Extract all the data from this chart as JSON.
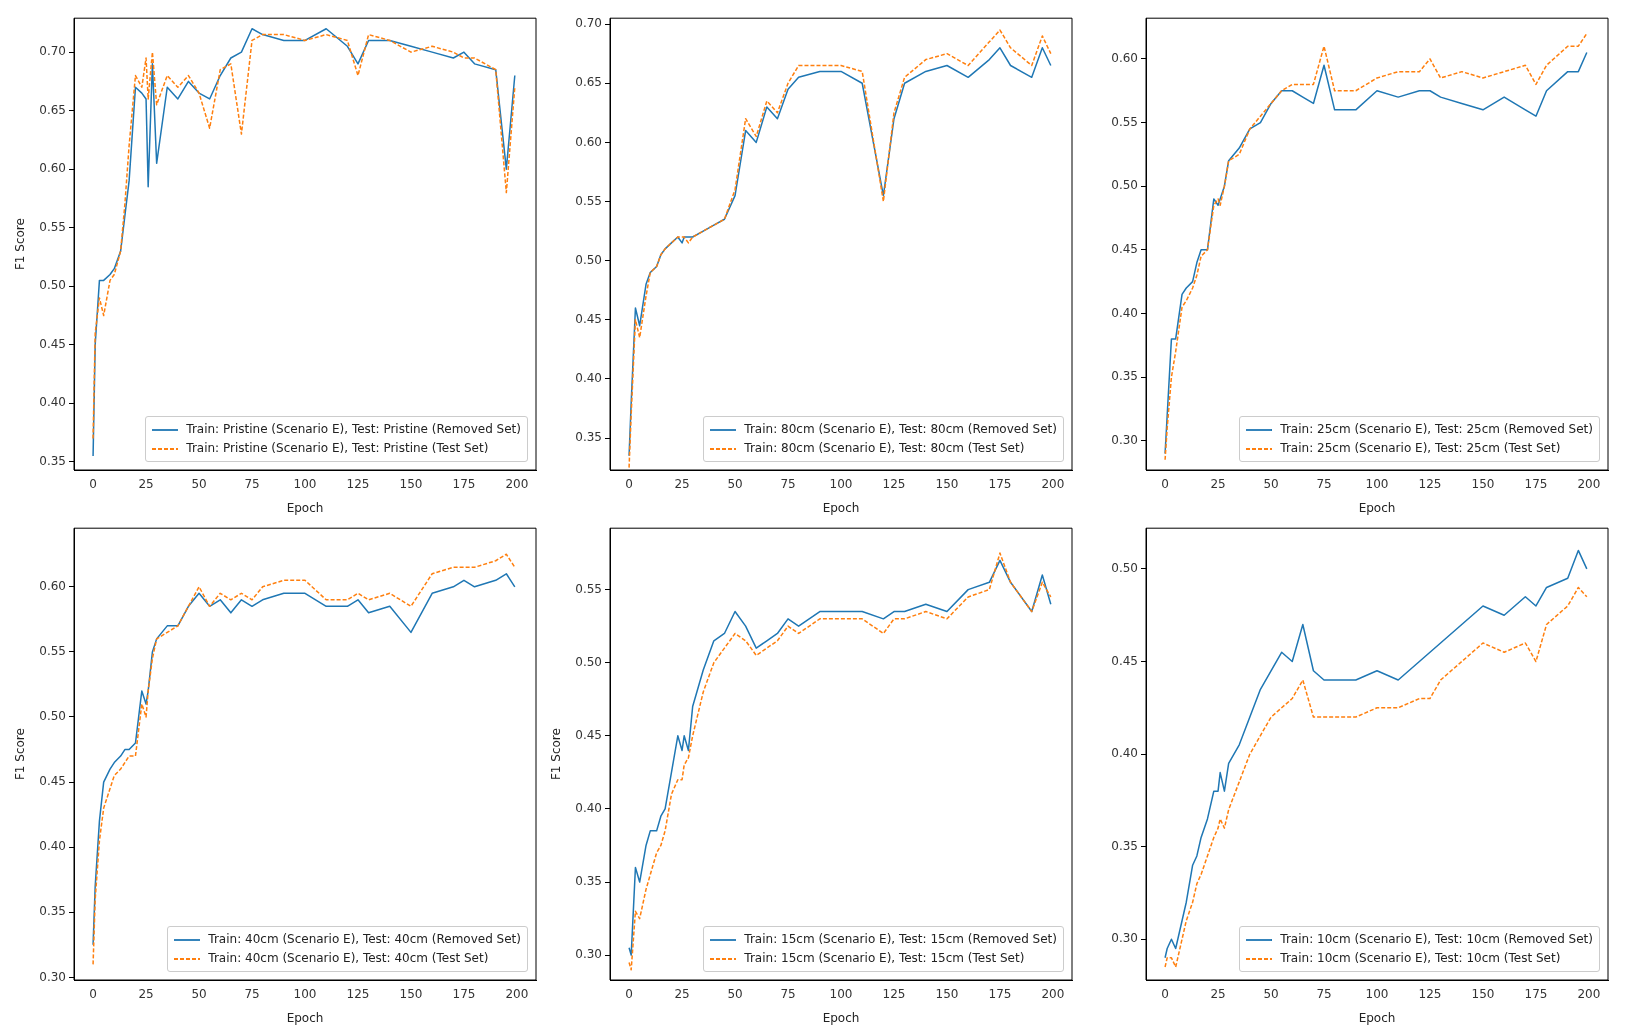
{
  "chart_data": [
    {
      "type": "line",
      "xlabel": "Epoch",
      "ylabel": "F1 Score",
      "legend": "bottom right",
      "grid": false,
      "xlim": [
        -9,
        209
      ],
      "xticks": [
        0,
        25,
        50,
        75,
        100,
        125,
        150,
        175,
        200
      ],
      "ylim": [
        0.343,
        0.729
      ],
      "yticks": [
        0.35,
        {
          "value": 0.4,
          "label": "0.40"
        },
        0.45,
        {
          "value": 0.5,
          "label": "0.50"
        },
        0.55,
        {
          "value": 0.6,
          "label": "0.60"
        },
        0.65,
        {
          "value": 0.7,
          "label": "0.70"
        }
      ],
      "x": [
        0,
        1,
        3,
        5,
        8,
        10,
        13,
        15,
        17,
        20,
        23,
        25,
        26,
        28,
        30,
        35,
        40,
        45,
        50,
        55,
        60,
        65,
        70,
        75,
        80,
        90,
        100,
        110,
        120,
        125,
        130,
        140,
        150,
        160,
        170,
        175,
        180,
        190,
        195,
        199
      ],
      "series": [
        {
          "name": "Train: Pristine (Scenario E), Test: Pristine (Removed Set)",
          "color": "#1f77b4",
          "line_style": "solid",
          "values": [
            0.355,
            0.45,
            0.505,
            0.505,
            0.51,
            0.515,
            0.53,
            0.56,
            0.59,
            0.67,
            0.665,
            0.66,
            0.585,
            0.69,
            0.605,
            0.67,
            0.66,
            0.675,
            0.665,
            0.66,
            0.68,
            0.695,
            0.7,
            0.72,
            0.715,
            0.71,
            0.71,
            0.72,
            0.705,
            0.69,
            0.71,
            0.71,
            0.705,
            0.7,
            0.695,
            0.7,
            0.69,
            0.685,
            0.6,
            0.68
          ]
        },
        {
          "name": "Train: Pristine (Scenario E), Test: Pristine (Test Set)",
          "color": "#ff7f0e",
          "line_style": "dashed",
          "values": [
            0.37,
            0.46,
            0.49,
            0.475,
            0.505,
            0.51,
            0.53,
            0.57,
            0.62,
            0.68,
            0.67,
            0.695,
            0.66,
            0.7,
            0.655,
            0.68,
            0.67,
            0.68,
            0.665,
            0.635,
            0.685,
            0.69,
            0.63,
            0.71,
            0.715,
            0.715,
            0.71,
            0.715,
            0.71,
            0.68,
            0.715,
            0.71,
            0.7,
            0.705,
            0.7,
            0.695,
            0.695,
            0.685,
            0.58,
            0.67
          ]
        }
      ]
    },
    {
      "type": "line",
      "xlabel": "Epoch",
      "legend": "bottom right",
      "grid": false,
      "xlim": [
        -9,
        209
      ],
      "xticks": [
        0,
        25,
        50,
        75,
        100,
        125,
        150,
        175,
        200
      ],
      "ylim": [
        0.323,
        0.705
      ],
      "yticks": [
        0.35,
        {
          "value": 0.4,
          "label": "0.40"
        },
        0.45,
        {
          "value": 0.5,
          "label": "0.50"
        },
        0.55,
        {
          "value": 0.6,
          "label": "0.60"
        },
        0.65,
        {
          "value": 0.7,
          "label": "0.70"
        }
      ],
      "x": [
        0,
        1,
        3,
        5,
        8,
        10,
        13,
        15,
        17,
        20,
        23,
        25,
        26,
        28,
        30,
        35,
        40,
        45,
        50,
        55,
        60,
        65,
        70,
        75,
        80,
        90,
        100,
        110,
        120,
        125,
        130,
        140,
        150,
        160,
        170,
        175,
        180,
        190,
        195,
        199
      ],
      "series": [
        {
          "name": "Train: 80cm (Scenario E), Test: 80cm (Removed Set)",
          "color": "#1f77b4",
          "line_style": "solid",
          "values": [
            0.335,
            0.38,
            0.46,
            0.445,
            0.48,
            0.49,
            0.495,
            0.505,
            0.51,
            0.515,
            0.52,
            0.515,
            0.52,
            0.52,
            0.52,
            0.525,
            0.53,
            0.535,
            0.555,
            0.61,
            0.6,
            0.63,
            0.62,
            0.645,
            0.655,
            0.66,
            0.66,
            0.65,
            0.555,
            0.62,
            0.65,
            0.66,
            0.665,
            0.655,
            0.67,
            0.68,
            0.665,
            0.655,
            0.68,
            0.665
          ]
        },
        {
          "name": "Train: 80cm (Scenario E), Test: 80cm (Test Set)",
          "color": "#ff7f0e",
          "line_style": "dashed",
          "values": [
            0.325,
            0.37,
            0.45,
            0.435,
            0.47,
            0.49,
            0.495,
            0.505,
            0.51,
            0.515,
            0.52,
            0.52,
            0.52,
            0.515,
            0.52,
            0.525,
            0.53,
            0.535,
            0.56,
            0.62,
            0.605,
            0.635,
            0.625,
            0.65,
            0.665,
            0.665,
            0.665,
            0.66,
            0.55,
            0.625,
            0.655,
            0.67,
            0.675,
            0.665,
            0.685,
            0.695,
            0.68,
            0.665,
            0.69,
            0.675
          ]
        }
      ]
    },
    {
      "type": "line",
      "xlabel": "Epoch",
      "legend": "bottom right",
      "grid": false,
      "xlim": [
        -9,
        209
      ],
      "xticks": [
        0,
        25,
        50,
        75,
        100,
        125,
        150,
        175,
        200
      ],
      "ylim": [
        0.277,
        0.632
      ],
      "yticks": [
        {
          "value": 0.3,
          "label": "0.30"
        },
        0.35,
        {
          "value": 0.4,
          "label": "0.40"
        },
        0.45,
        {
          "value": 0.5,
          "label": "0.50"
        },
        0.55,
        {
          "value": 0.6,
          "label": "0.60"
        }
      ],
      "x": [
        0,
        1,
        3,
        5,
        8,
        10,
        13,
        15,
        17,
        20,
        23,
        25,
        26,
        28,
        30,
        35,
        40,
        45,
        50,
        55,
        60,
        65,
        70,
        75,
        80,
        90,
        100,
        110,
        120,
        125,
        130,
        140,
        150,
        160,
        170,
        175,
        180,
        190,
        195,
        199
      ],
      "series": [
        {
          "name": "Train: 25cm (Scenario E), Test: 25cm (Removed Set)",
          "color": "#1f77b4",
          "line_style": "solid",
          "values": [
            0.29,
            0.32,
            0.38,
            0.38,
            0.415,
            0.42,
            0.425,
            0.44,
            0.45,
            0.45,
            0.49,
            0.485,
            0.49,
            0.5,
            0.52,
            0.53,
            0.545,
            0.55,
            0.565,
            0.575,
            0.575,
            0.57,
            0.565,
            0.595,
            0.56,
            0.56,
            0.575,
            0.57,
            0.575,
            0.575,
            0.57,
            0.565,
            0.56,
            0.57,
            0.56,
            0.555,
            0.575,
            0.59,
            0.59,
            0.605
          ]
        },
        {
          "name": "Train: 25cm (Scenario E), Test: 25cm (Test Set)",
          "color": "#ff7f0e",
          "line_style": "dashed",
          "values": [
            0.285,
            0.31,
            0.35,
            0.37,
            0.405,
            0.41,
            0.42,
            0.43,
            0.445,
            0.45,
            0.485,
            0.49,
            0.485,
            0.5,
            0.52,
            0.525,
            0.545,
            0.555,
            0.565,
            0.575,
            0.58,
            0.58,
            0.58,
            0.61,
            0.575,
            0.575,
            0.585,
            0.59,
            0.59,
            0.6,
            0.585,
            0.59,
            0.585,
            0.59,
            0.595,
            0.58,
            0.595,
            0.61,
            0.61,
            0.62
          ]
        }
      ]
    },
    {
      "type": "line",
      "xlabel": "Epoch",
      "ylabel": "F1 Score",
      "legend": "bottom right",
      "grid": false,
      "xlim": [
        -9,
        209
      ],
      "xticks": [
        0,
        25,
        50,
        75,
        100,
        125,
        150,
        175,
        200
      ],
      "ylim": [
        0.298,
        0.645
      ],
      "yticks": [
        {
          "value": 0.3,
          "label": "0.30"
        },
        0.35,
        {
          "value": 0.4,
          "label": "0.40"
        },
        0.45,
        {
          "value": 0.5,
          "label": "0.50"
        },
        0.55,
        {
          "value": 0.6,
          "label": "0.60"
        }
      ],
      "x": [
        0,
        1,
        3,
        5,
        8,
        10,
        13,
        15,
        17,
        20,
        23,
        25,
        26,
        28,
        30,
        35,
        40,
        45,
        50,
        55,
        60,
        65,
        70,
        75,
        80,
        90,
        100,
        110,
        120,
        125,
        130,
        140,
        150,
        160,
        170,
        175,
        180,
        190,
        195,
        199
      ],
      "series": [
        {
          "name": "Train: 40cm (Scenario E), Test: 40cm (Removed Set)",
          "color": "#1f77b4",
          "line_style": "solid",
          "values": [
            0.325,
            0.37,
            0.42,
            0.45,
            0.46,
            0.465,
            0.47,
            0.475,
            0.475,
            0.48,
            0.52,
            0.51,
            0.52,
            0.55,
            0.56,
            0.57,
            0.57,
            0.585,
            0.595,
            0.585,
            0.59,
            0.58,
            0.59,
            0.585,
            0.59,
            0.595,
            0.595,
            0.585,
            0.585,
            0.59,
            0.58,
            0.585,
            0.565,
            0.595,
            0.6,
            0.605,
            0.6,
            0.605,
            0.61,
            0.6
          ]
        },
        {
          "name": "Train: 40cm (Scenario E), Test: 40cm (Test Set)",
          "color": "#ff7f0e",
          "line_style": "dashed",
          "values": [
            0.31,
            0.36,
            0.405,
            0.43,
            0.445,
            0.455,
            0.46,
            0.465,
            0.47,
            0.47,
            0.51,
            0.5,
            0.52,
            0.545,
            0.56,
            0.565,
            0.57,
            0.585,
            0.6,
            0.585,
            0.595,
            0.59,
            0.595,
            0.59,
            0.6,
            0.605,
            0.605,
            0.59,
            0.59,
            0.595,
            0.59,
            0.595,
            0.585,
            0.61,
            0.615,
            0.615,
            0.615,
            0.62,
            0.625,
            0.615
          ]
        }
      ]
    },
    {
      "type": "line",
      "xlabel": "Epoch",
      "ylabel": "F1 Score",
      "legend": "bottom right",
      "grid": false,
      "xlim": [
        -9,
        209
      ],
      "xticks": [
        0,
        25,
        50,
        75,
        100,
        125,
        150,
        175,
        200
      ],
      "ylim": [
        0.283,
        0.592
      ],
      "yticks": [
        {
          "value": 0.3,
          "label": "0.30"
        },
        0.35,
        {
          "value": 0.4,
          "label": "0.40"
        },
        0.45,
        {
          "value": 0.5,
          "label": "0.50"
        },
        0.55
      ],
      "x": [
        0,
        1,
        3,
        5,
        8,
        10,
        13,
        15,
        17,
        20,
        23,
        25,
        26,
        28,
        30,
        35,
        40,
        45,
        50,
        55,
        60,
        65,
        70,
        75,
        80,
        90,
        100,
        110,
        120,
        125,
        130,
        140,
        150,
        160,
        170,
        175,
        180,
        190,
        195,
        199
      ],
      "series": [
        {
          "name": "Train: 15cm (Scenario E), Test: 15cm (Removed Set)",
          "color": "#1f77b4",
          "line_style": "solid",
          "values": [
            0.305,
            0.3,
            0.36,
            0.35,
            0.375,
            0.385,
            0.385,
            0.395,
            0.4,
            0.425,
            0.45,
            0.44,
            0.45,
            0.44,
            0.47,
            0.495,
            0.515,
            0.52,
            0.535,
            0.525,
            0.51,
            0.515,
            0.52,
            0.53,
            0.525,
            0.535,
            0.535,
            0.535,
            0.53,
            0.535,
            0.535,
            0.54,
            0.535,
            0.55,
            0.555,
            0.57,
            0.555,
            0.535,
            0.56,
            0.54
          ]
        },
        {
          "name": "Train: 15cm (Scenario E), Test: 15cm (Test Set)",
          "color": "#ff7f0e",
          "line_style": "dashed",
          "values": [
            0.295,
            0.29,
            0.33,
            0.325,
            0.345,
            0.355,
            0.37,
            0.375,
            0.385,
            0.41,
            0.42,
            0.42,
            0.43,
            0.435,
            0.45,
            0.48,
            0.5,
            0.51,
            0.52,
            0.515,
            0.505,
            0.51,
            0.515,
            0.525,
            0.52,
            0.53,
            0.53,
            0.53,
            0.52,
            0.53,
            0.53,
            0.535,
            0.53,
            0.545,
            0.55,
            0.575,
            0.555,
            0.535,
            0.555,
            0.545
          ]
        }
      ]
    },
    {
      "type": "line",
      "xlabel": "Epoch",
      "legend": "bottom right",
      "grid": false,
      "xlim": [
        -9,
        209
      ],
      "xticks": [
        0,
        25,
        50,
        75,
        100,
        125,
        150,
        175,
        200
      ],
      "ylim": [
        0.278,
        0.522
      ],
      "yticks": [
        {
          "value": 0.3,
          "label": "0.30"
        },
        0.35,
        {
          "value": 0.4,
          "label": "0.40"
        },
        0.45,
        {
          "value": 0.5,
          "label": "0.50"
        }
      ],
      "x": [
        0,
        1,
        3,
        5,
        8,
        10,
        13,
        15,
        17,
        20,
        23,
        25,
        26,
        28,
        30,
        35,
        40,
        45,
        50,
        55,
        60,
        65,
        70,
        75,
        80,
        90,
        100,
        110,
        120,
        125,
        130,
        140,
        150,
        160,
        170,
        175,
        180,
        190,
        195,
        199
      ],
      "series": [
        {
          "name": "Train: 10cm (Scenario E), Test: 10cm (Removed Set)",
          "color": "#1f77b4",
          "line_style": "solid",
          "values": [
            0.29,
            0.295,
            0.3,
            0.295,
            0.31,
            0.32,
            0.34,
            0.345,
            0.355,
            0.365,
            0.38,
            0.38,
            0.39,
            0.38,
            0.395,
            0.405,
            0.42,
            0.435,
            0.445,
            0.455,
            0.45,
            0.47,
            0.445,
            0.44,
            0.44,
            0.44,
            0.445,
            0.44,
            0.45,
            0.455,
            0.46,
            0.47,
            0.48,
            0.475,
            0.485,
            0.48,
            0.49,
            0.495,
            0.51,
            0.5
          ]
        },
        {
          "name": "Train: 10cm (Scenario E), Test: 10cm (Test Set)",
          "color": "#ff7f0e",
          "line_style": "dashed",
          "values": [
            0.285,
            0.29,
            0.29,
            0.285,
            0.3,
            0.31,
            0.32,
            0.33,
            0.335,
            0.345,
            0.355,
            0.36,
            0.365,
            0.36,
            0.37,
            0.385,
            0.4,
            0.41,
            0.42,
            0.425,
            0.43,
            0.44,
            0.42,
            0.42,
            0.42,
            0.42,
            0.425,
            0.425,
            0.43,
            0.43,
            0.44,
            0.45,
            0.46,
            0.455,
            0.46,
            0.45,
            0.47,
            0.48,
            0.49,
            0.485
          ]
        }
      ]
    }
  ]
}
